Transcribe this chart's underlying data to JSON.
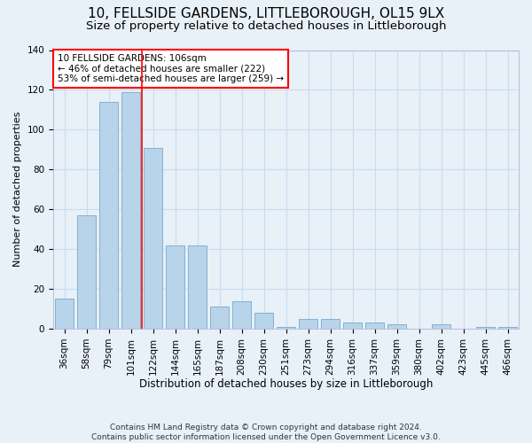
{
  "title": "10, FELLSIDE GARDENS, LITTLEBOROUGH, OL15 9LX",
  "subtitle": "Size of property relative to detached houses in Littleborough",
  "xlabel": "Distribution of detached houses by size in Littleborough",
  "ylabel": "Number of detached properties",
  "categories": [
    "36sqm",
    "58sqm",
    "79sqm",
    "101sqm",
    "122sqm",
    "144sqm",
    "165sqm",
    "187sqm",
    "208sqm",
    "230sqm",
    "251sqm",
    "273sqm",
    "294sqm",
    "316sqm",
    "337sqm",
    "359sqm",
    "380sqm",
    "402sqm",
    "423sqm",
    "445sqm",
    "466sqm"
  ],
  "values": [
    15,
    57,
    114,
    119,
    91,
    42,
    42,
    11,
    14,
    8,
    1,
    5,
    5,
    3,
    3,
    2,
    0,
    2,
    0,
    1,
    1
  ],
  "bar_color": "#b8d4ea",
  "bar_edge_color": "#7aaac8",
  "grid_color": "#c8ddf0",
  "background_color": "#e8f0f8",
  "red_line_x": 3.5,
  "annotation_text": "10 FELLSIDE GARDENS: 106sqm\n← 46% of detached houses are smaller (222)\n53% of semi-detached houses are larger (259) →",
  "annotation_box_color": "white",
  "annotation_box_edgecolor": "red",
  "footer": "Contains HM Land Registry data © Crown copyright and database right 2024.\nContains public sector information licensed under the Open Government Licence v3.0.",
  "ylim": [
    0,
    140
  ],
  "title_fontsize": 11,
  "subtitle_fontsize": 9.5,
  "xlabel_fontsize": 8.5,
  "ylabel_fontsize": 8,
  "tick_fontsize": 7.5,
  "footer_fontsize": 6.5
}
